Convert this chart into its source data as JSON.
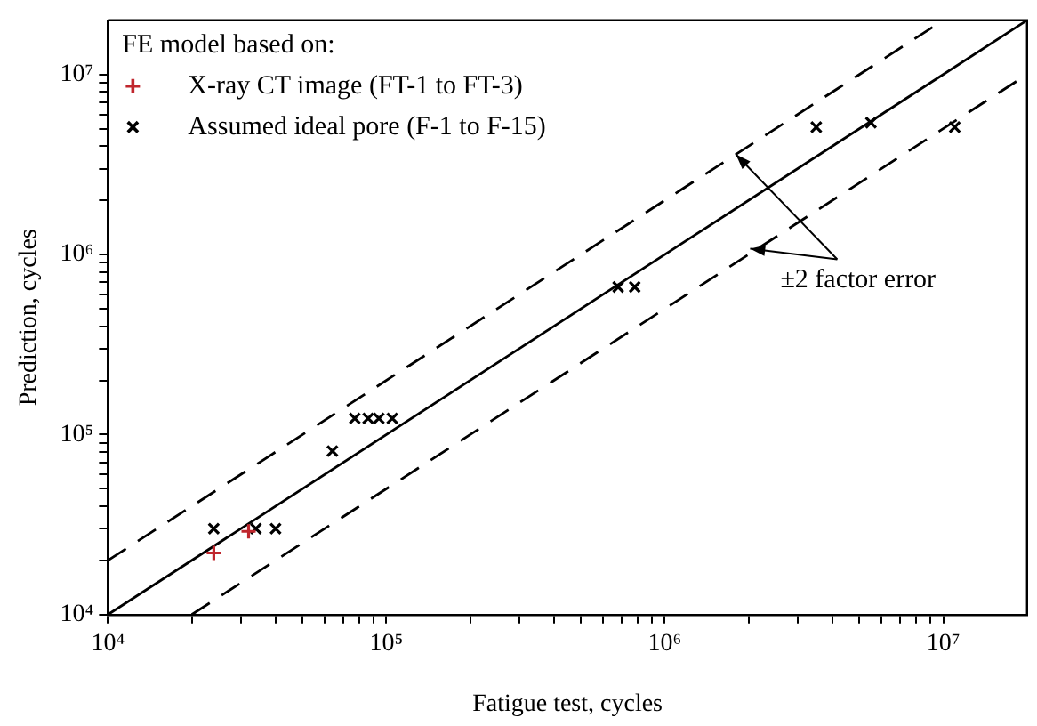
{
  "chart_data": {
    "type": "scatter",
    "xlabel": "Fatigue test, cycles",
    "ylabel": "Prediction, cycles",
    "legend_title": "FE model based on:",
    "legend": "top left",
    "log": "xy",
    "grid": false,
    "xlim": [
      10000,
      20000000
    ],
    "ylim": [
      10000,
      20000000
    ],
    "xticks": [
      {
        "value": 10000,
        "label": "10⁴"
      },
      {
        "value": 20000,
        "label": null
      },
      {
        "value": 30000,
        "label": null
      },
      {
        "value": 40000,
        "label": null
      },
      {
        "value": 50000,
        "label": null
      },
      {
        "value": 60000,
        "label": null
      },
      {
        "value": 70000,
        "label": null
      },
      {
        "value": 80000,
        "label": null
      },
      {
        "value": 90000,
        "label": null
      },
      {
        "value": 100000,
        "label": "10⁵"
      },
      {
        "value": 200000,
        "label": null
      },
      {
        "value": 300000,
        "label": null
      },
      {
        "value": 400000,
        "label": null
      },
      {
        "value": 500000,
        "label": null
      },
      {
        "value": 600000,
        "label": null
      },
      {
        "value": 700000,
        "label": null
      },
      {
        "value": 800000,
        "label": null
      },
      {
        "value": 900000,
        "label": null
      },
      {
        "value": 1000000,
        "label": "10⁶"
      },
      {
        "value": 2000000,
        "label": null
      },
      {
        "value": 3000000,
        "label": null
      },
      {
        "value": 4000000,
        "label": null
      },
      {
        "value": 5000000,
        "label": null
      },
      {
        "value": 6000000,
        "label": null
      },
      {
        "value": 7000000,
        "label": null
      },
      {
        "value": 8000000,
        "label": null
      },
      {
        "value": 9000000,
        "label": null
      },
      {
        "value": 10000000,
        "label": "10⁷"
      }
    ],
    "yticks": [
      {
        "value": 10000,
        "label": "10⁴"
      },
      {
        "value": 20000,
        "label": null
      },
      {
        "value": 30000,
        "label": null
      },
      {
        "value": 40000,
        "label": null
      },
      {
        "value": 50000,
        "label": null
      },
      {
        "value": 60000,
        "label": null
      },
      {
        "value": 70000,
        "label": null
      },
      {
        "value": 80000,
        "label": null
      },
      {
        "value": 90000,
        "label": null
      },
      {
        "value": 100000,
        "label": "10⁵"
      },
      {
        "value": 200000,
        "label": null
      },
      {
        "value": 300000,
        "label": null
      },
      {
        "value": 400000,
        "label": null
      },
      {
        "value": 500000,
        "label": null
      },
      {
        "value": 600000,
        "label": null
      },
      {
        "value": 700000,
        "label": null
      },
      {
        "value": 800000,
        "label": null
      },
      {
        "value": 900000,
        "label": null
      },
      {
        "value": 1000000,
        "label": "10⁶"
      },
      {
        "value": 2000000,
        "label": null
      },
      {
        "value": 3000000,
        "label": null
      },
      {
        "value": 4000000,
        "label": null
      },
      {
        "value": 5000000,
        "label": null
      },
      {
        "value": 6000000,
        "label": null
      },
      {
        "value": 7000000,
        "label": null
      },
      {
        "value": 8000000,
        "label": null
      },
      {
        "value": 9000000,
        "label": null
      },
      {
        "value": 10000000,
        "label": "10⁷"
      }
    ],
    "series": [
      {
        "name": "X-ray CT image (FT-1 to FT-3)",
        "marker": "cross",
        "color": "#c0262d",
        "x": [
          24000,
          32000
        ],
        "values": [
          22000,
          29000
        ]
      },
      {
        "name": "Assumed ideal pore (F-1 to F-15)",
        "marker": "x",
        "color": "#000000",
        "x": [
          24000,
          34000,
          40000,
          64000,
          77000,
          86000,
          94000,
          105000,
          680000,
          780000,
          3500000,
          5500000,
          11000000
        ],
        "values": [
          30000,
          30000,
          30000,
          81000,
          123000,
          123000,
          123000,
          123000,
          660000,
          660000,
          5100000,
          5400000,
          5100000
        ]
      },
      {
        "type": "line",
        "line_style": "solid",
        "color": "#000000",
        "x": [
          10000,
          20000000
        ],
        "values": [
          10000,
          20000000
        ]
      },
      {
        "type": "line",
        "line_style": "dashed",
        "color": "#000000",
        "x": [
          10000,
          10000000
        ],
        "values": [
          20000,
          20000000
        ]
      },
      {
        "type": "line",
        "line_style": "dashed",
        "color": "#000000",
        "x": [
          20000,
          20000000
        ],
        "values": [
          10000,
          10000000
        ]
      }
    ],
    "annotations": [
      {
        "text": "±2 factor error",
        "x": 1800000,
        "y": 3600000
      }
    ]
  }
}
